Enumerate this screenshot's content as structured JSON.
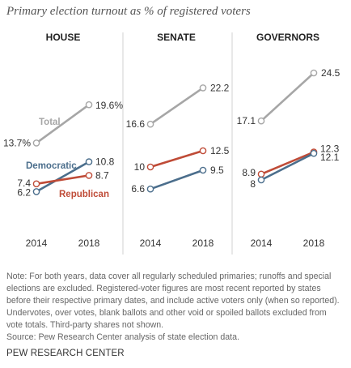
{
  "title": "Primary election turnout as % of registered voters",
  "chart_data": [
    {
      "type": "line",
      "title": "HOUSE",
      "x": [
        "2014",
        "2018"
      ],
      "series": [
        {
          "name": "Total",
          "values": [
            13.7,
            19.6
          ],
          "labels": [
            "13.7%",
            "19.6%"
          ],
          "color": "#a6a6a6"
        },
        {
          "name": "Democratic",
          "values": [
            6.2,
            10.8
          ],
          "labels": [
            "6.2",
            "10.8"
          ],
          "color": "#4b6e8c"
        },
        {
          "name": "Republican",
          "values": [
            7.4,
            8.7
          ],
          "labels": [
            "7.4",
            "8.7"
          ],
          "color": "#bf4b37"
        }
      ]
    },
    {
      "type": "line",
      "title": "SENATE",
      "x": [
        "2014",
        "2018"
      ],
      "series": [
        {
          "name": "Total",
          "values": [
            16.6,
            22.2
          ],
          "labels": [
            "16.6",
            "22.2"
          ],
          "color": "#a6a6a6"
        },
        {
          "name": "Republican",
          "values": [
            10,
            12.5
          ],
          "labels": [
            "10",
            "12.5"
          ],
          "color": "#bf4b37"
        },
        {
          "name": "Democratic",
          "values": [
            6.6,
            9.5
          ],
          "labels": [
            "6.6",
            "9.5"
          ],
          "color": "#4b6e8c"
        }
      ]
    },
    {
      "type": "line",
      "title": "GOVERNORS",
      "x": [
        "2014",
        "2018"
      ],
      "series": [
        {
          "name": "Total",
          "values": [
            17.1,
            24.5
          ],
          "labels": [
            "17.1",
            "24.5"
          ],
          "color": "#a6a6a6"
        },
        {
          "name": "Republican",
          "values": [
            8.9,
            12.3
          ],
          "labels": [
            "8.9",
            "12.3"
          ],
          "color": "#bf4b37"
        },
        {
          "name": "Democratic",
          "values": [
            8,
            12.1
          ],
          "labels": [
            "8",
            "12.1"
          ],
          "color": "#4b6e8c"
        }
      ]
    }
  ],
  "note": "Note: For both years, data cover all regularly scheduled primaries; runoffs and special elections are excluded. Registered-voter figures are most recent reported by states before their respective primary dates, and include active voters only (when so reported). Undervotes, over votes, blank ballots and other void or spoiled ballots excluded from vote totals. Third-party shares not shown.",
  "source": "Source: Pew Research Center analysis of state election data.",
  "brand": "PEW RESEARCH CENTER"
}
